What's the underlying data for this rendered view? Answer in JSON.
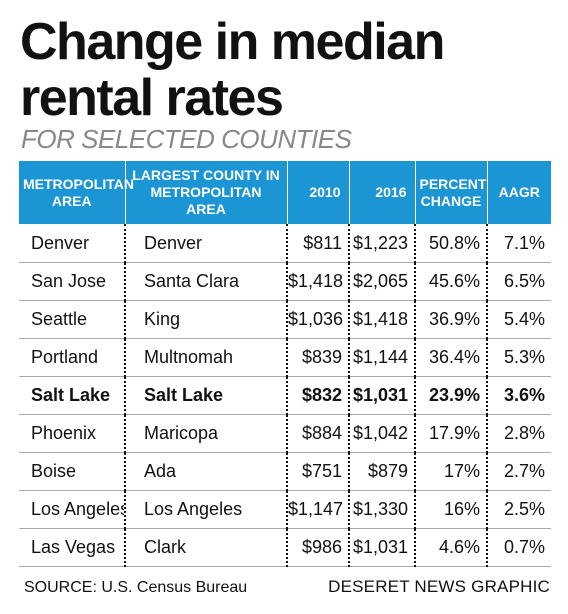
{
  "title": "Change in median rental rates",
  "subtitle": "FOR SELECTED COUNTIES",
  "source": "SOURCE: U.S. Census Bureau",
  "credit": "DESERET NEWS GRAPHIC",
  "colors": {
    "header_bg": "#1b95d3",
    "header_text": "#ffffff",
    "subtitle": "#888888"
  },
  "chart_data": {
    "type": "table",
    "title": "Change in median rental rates",
    "subtitle": "FOR SELECTED COUNTIES",
    "columns": [
      "METROPOLITAN AREA",
      "LARGEST COUNTY IN METROPOLITAN AREA",
      "2010",
      "2016",
      "PERCENT CHANGE",
      "AAGR"
    ],
    "rows": [
      {
        "metro": "Denver",
        "county": "Denver",
        "y2010": "$811",
        "y2016": "$1,223",
        "pct": "50.8%",
        "aagr": "7.1%",
        "bold": false
      },
      {
        "metro": "San Jose",
        "county": "Santa Clara",
        "y2010": "$1,418",
        "y2016": "$2,065",
        "pct": "45.6%",
        "aagr": "6.5%",
        "bold": false
      },
      {
        "metro": "Seattle",
        "county": "King",
        "y2010": "$1,036",
        "y2016": "$1,418",
        "pct": "36.9%",
        "aagr": "5.4%",
        "bold": false
      },
      {
        "metro": "Portland",
        "county": "Multnomah",
        "y2010": "$839",
        "y2016": "$1,144",
        "pct": "36.4%",
        "aagr": "5.3%",
        "bold": false
      },
      {
        "metro": "Salt Lake",
        "county": "Salt Lake",
        "y2010": "$832",
        "y2016": "$1,031",
        "pct": "23.9%",
        "aagr": "3.6%",
        "bold": true
      },
      {
        "metro": "Phoenix",
        "county": "Maricopa",
        "y2010": "$884",
        "y2016": "$1,042",
        "pct": "17.9%",
        "aagr": "2.8%",
        "bold": false
      },
      {
        "metro": "Boise",
        "county": "Ada",
        "y2010": "$751",
        "y2016": "$879",
        "pct": "17%",
        "aagr": "2.7%",
        "bold": false
      },
      {
        "metro": "Los Angeles",
        "county": "Los Angeles",
        "y2010": "$1,147",
        "y2016": "$1,330",
        "pct": "16%",
        "aagr": "2.5%",
        "bold": false
      },
      {
        "metro": "Las Vegas",
        "county": "Clark",
        "y2010": "$986",
        "y2016": "$1,031",
        "pct": "4.6%",
        "aagr": "0.7%",
        "bold": false
      }
    ]
  }
}
